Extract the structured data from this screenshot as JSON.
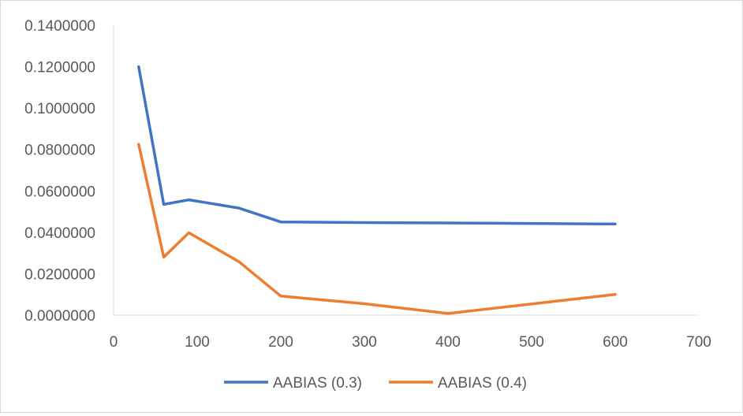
{
  "chart_data": {
    "type": "line",
    "title": "",
    "xlabel": "",
    "ylabel": "",
    "xlim": [
      0,
      700
    ],
    "ylim": [
      0,
      0.14
    ],
    "x_ticks": [
      0,
      100,
      200,
      300,
      400,
      500,
      600,
      700
    ],
    "y_ticks": [
      0.0,
      0.02,
      0.04,
      0.06,
      0.08,
      0.1,
      0.12,
      0.14
    ],
    "x_tick_labels": [
      "0",
      "100",
      "200",
      "300",
      "400",
      "500",
      "600",
      "700"
    ],
    "y_tick_labels": [
      "0.0000000",
      "0.0200000",
      "0.0400000",
      "0.0600000",
      "0.0800000",
      "0.1000000",
      "0.1200000",
      "0.1400000"
    ],
    "grid": false,
    "legend_position": "bottom",
    "series": [
      {
        "name": "AABIAS (0.3)",
        "color": "#4472C4",
        "points": [
          [
            30,
            0.12
          ],
          [
            60,
            0.0535
          ],
          [
            90,
            0.0557
          ],
          [
            150,
            0.0517
          ],
          [
            200,
            0.045
          ],
          [
            300,
            0.0447
          ],
          [
            400,
            0.0445
          ],
          [
            600,
            0.044
          ]
        ]
      },
      {
        "name": "AABIAS (0.4)",
        "color": "#ED7D31",
        "points": [
          [
            30,
            0.0825
          ],
          [
            60,
            0.028
          ],
          [
            90,
            0.0398
          ],
          [
            150,
            0.0258
          ],
          [
            200,
            0.0092
          ],
          [
            300,
            0.0055
          ],
          [
            400,
            0.0008
          ],
          [
            600,
            0.01
          ]
        ]
      }
    ]
  }
}
